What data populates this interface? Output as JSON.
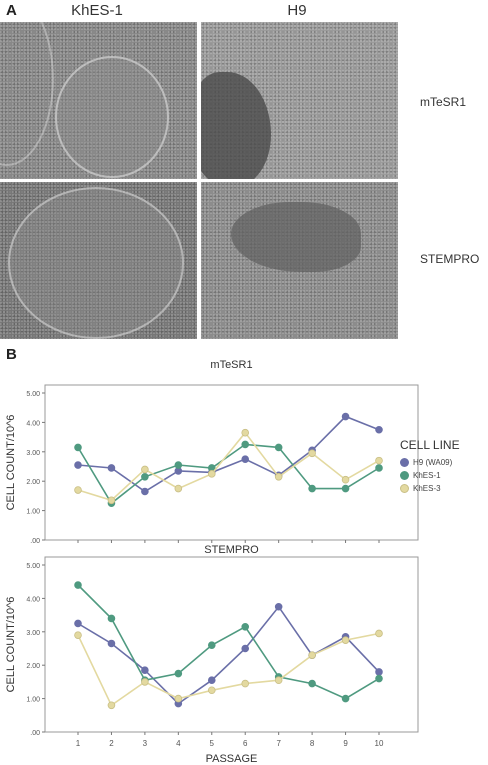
{
  "panel_a": {
    "letter": "A",
    "columns": [
      "KhES-1",
      "H9"
    ],
    "rows": [
      "mTeSR1",
      "STEMPRO"
    ]
  },
  "panel_b": {
    "letter": "B",
    "legend_title": "CELL LINE",
    "legend_items": [
      "H9 (WA09)",
      "KhES-1",
      "KhES-3"
    ]
  },
  "colors": {
    "h9": "#6a6fa8",
    "khes1": "#4f9a80",
    "khes3": "#e3d9a0"
  },
  "chart_data": [
    {
      "type": "line",
      "title": "mTeSR1",
      "xlabel": "",
      "ylabel": "CELL COUNT/10^6",
      "ylim": [
        0,
        5
      ],
      "yticks": [
        ".00",
        "1.00",
        "2.00",
        "3.00",
        "4.00",
        "5.00"
      ],
      "x": [
        1,
        2,
        3,
        4,
        5,
        6,
        7,
        8,
        9,
        10
      ],
      "series": [
        {
          "name": "H9 (WA09)",
          "values": [
            2.55,
            2.45,
            1.65,
            2.35,
            2.3,
            2.75,
            2.2,
            3.05,
            4.2,
            3.75
          ]
        },
        {
          "name": "KhES-1",
          "values": [
            3.15,
            1.25,
            2.15,
            2.55,
            2.45,
            3.25,
            3.15,
            1.75,
            1.75,
            2.45
          ]
        },
        {
          "name": "KhES-3",
          "values": [
            1.7,
            1.35,
            2.4,
            1.75,
            2.25,
            3.65,
            2.15,
            2.95,
            2.05,
            2.7
          ]
        }
      ]
    },
    {
      "type": "line",
      "title": "STEMPRO",
      "xlabel": "PASSAGE",
      "ylabel": "CELL COUNT/10^6",
      "ylim": [
        0,
        5
      ],
      "yticks": [
        ".00",
        "1.00",
        "2.00",
        "3.00",
        "4.00",
        "5.00"
      ],
      "xticks": [
        "1",
        "2",
        "3",
        "4",
        "5",
        "6",
        "7",
        "8",
        "9",
        "10"
      ],
      "x": [
        1,
        2,
        3,
        4,
        5,
        6,
        7,
        8,
        9,
        10
      ],
      "series": [
        {
          "name": "H9 (WA09)",
          "values": [
            3.25,
            2.65,
            1.85,
            0.85,
            1.55,
            2.5,
            3.75,
            2.3,
            2.85,
            1.8
          ]
        },
        {
          "name": "KhES-1",
          "values": [
            4.4,
            3.4,
            1.55,
            1.75,
            2.6,
            3.15,
            1.65,
            1.45,
            1.0,
            1.6
          ]
        },
        {
          "name": "KhES-3",
          "values": [
            2.9,
            0.8,
            1.5,
            1.0,
            1.25,
            1.45,
            1.55,
            2.3,
            2.75,
            2.95
          ]
        }
      ]
    }
  ]
}
